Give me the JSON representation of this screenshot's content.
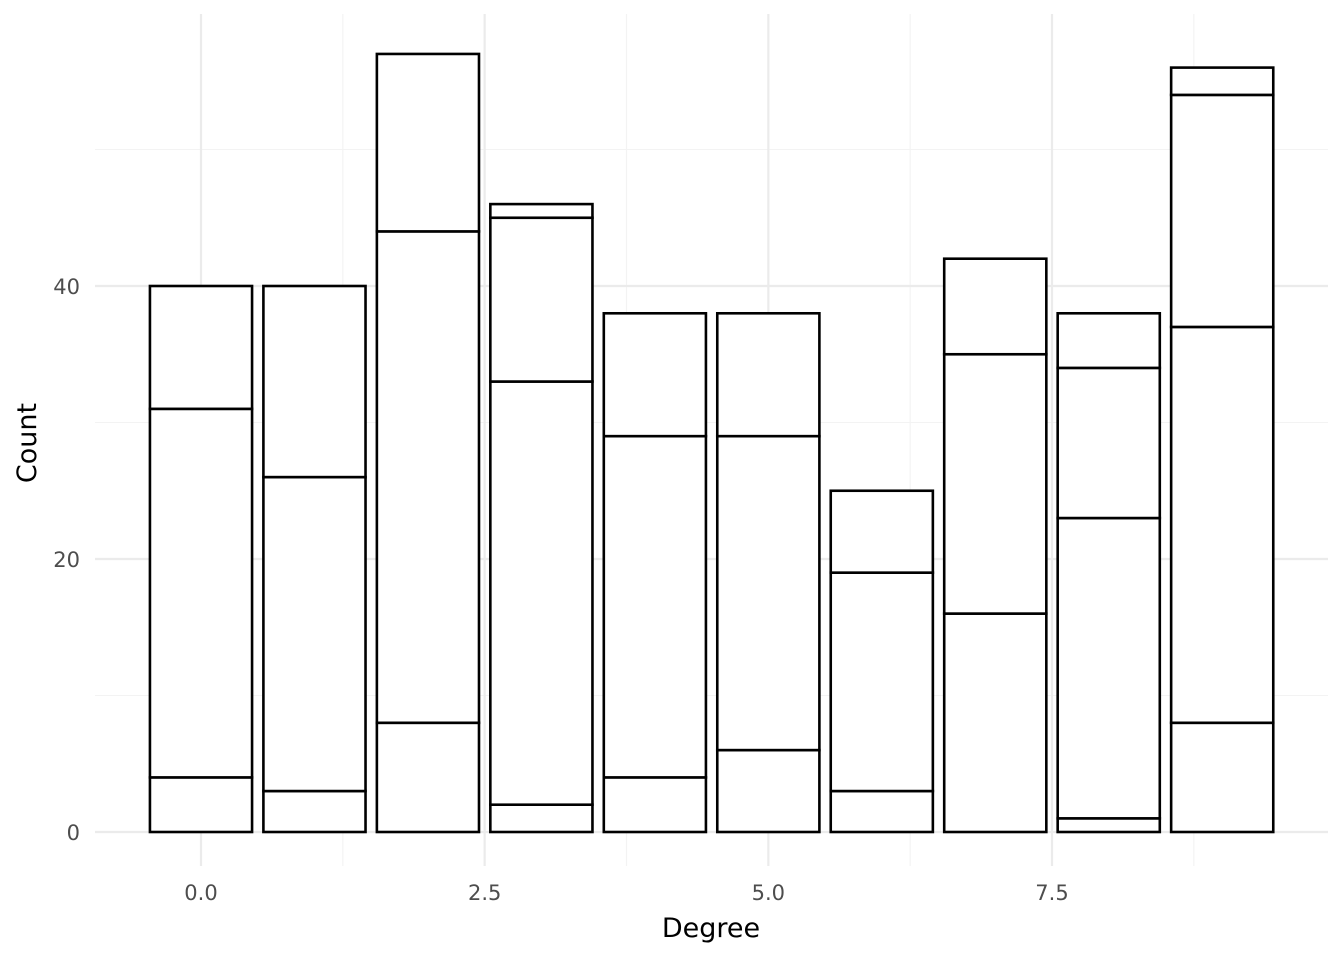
{
  "chart_data": {
    "type": "bar",
    "stacked": true,
    "title": "",
    "xlabel": "Degree",
    "ylabel": "Count",
    "x": [
      0,
      1,
      2,
      3,
      4,
      5,
      6,
      7,
      8,
      9
    ],
    "bar_width": 0.9,
    "xlim": [
      -0.95,
      9.95
    ],
    "ylim": [
      -2.5,
      60
    ],
    "x_ticks": [
      0,
      2.5,
      5,
      7.5
    ],
    "x_tick_labels": [
      "0.0",
      "2.5",
      "5.0",
      "7.5"
    ],
    "x_minor_ticks": [
      1.25,
      3.75,
      6.25,
      8.75
    ],
    "y_ticks": [
      0,
      20,
      40
    ],
    "y_tick_labels": [
      "0",
      "20",
      "40"
    ],
    "y_minor_ticks": [
      10,
      30,
      50
    ],
    "grid": true,
    "legend": "none",
    "segment_boundaries": [
      [
        0,
        4,
        31,
        40
      ],
      [
        0,
        3,
        26,
        40
      ],
      [
        0,
        8,
        44,
        57
      ],
      [
        0,
        2,
        33,
        45,
        46
      ],
      [
        0,
        4,
        29,
        38
      ],
      [
        0,
        6,
        29,
        38
      ],
      [
        0,
        3,
        19,
        25
      ],
      [
        0,
        16,
        35,
        42
      ],
      [
        0,
        1,
        23,
        34,
        38
      ],
      [
        0,
        8,
        37,
        54,
        56
      ]
    ],
    "totals": [
      40,
      40,
      57,
      46,
      38,
      38,
      25,
      42,
      38,
      56
    ]
  }
}
